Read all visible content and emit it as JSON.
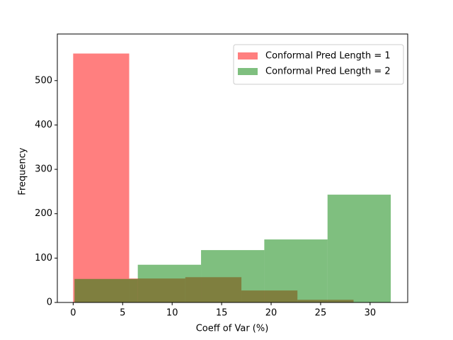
{
  "chart_data": {
    "type": "histogram",
    "x_label": "Coeff of Var (%)",
    "y_label": "Frequency",
    "series": [
      {
        "name": "Conformal Pred Length = 1",
        "color": "#ff0000",
        "bins": [
          0,
          5.66,
          11.33,
          17.0,
          22.66,
          28.33
        ],
        "values": [
          561,
          54,
          57,
          27,
          6
        ]
      },
      {
        "name": "Conformal Pred Length = 2",
        "color": "#008000",
        "bins": [
          0.14,
          6.53,
          12.92,
          19.31,
          25.7,
          32.09
        ],
        "values": [
          53,
          85,
          118,
          142,
          243
        ]
      }
    ],
    "xlim": [
      -1.6,
      33.8
    ],
    "ylim": [
      0,
      605
    ],
    "xticks": [
      0,
      5,
      10,
      15,
      20,
      25,
      30
    ],
    "yticks": [
      0,
      100,
      200,
      300,
      400,
      500
    ],
    "legend": "upper right"
  }
}
